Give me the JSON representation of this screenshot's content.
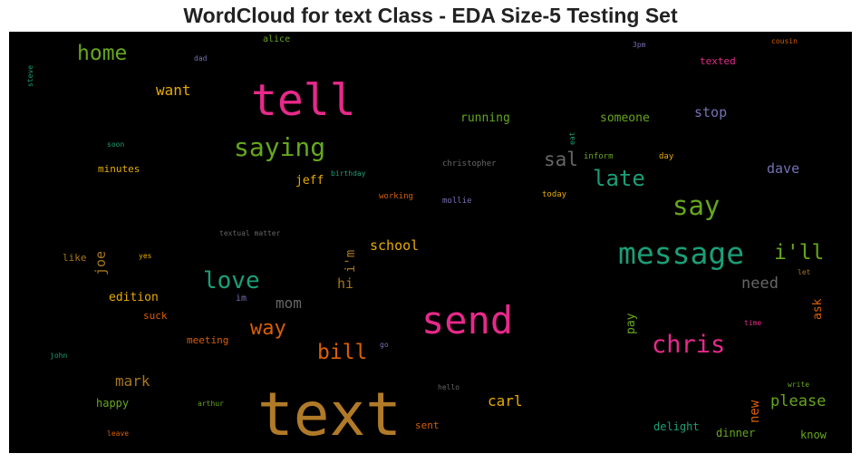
{
  "chart_data": {
    "type": "wordcloud",
    "title": "WordCloud for text Class - EDA Size-5 Testing Set",
    "background": "#000000",
    "words": [
      {
        "text": "text",
        "color": "#b07a28"
      },
      {
        "text": "tell",
        "color": "#e7298a"
      },
      {
        "text": "send",
        "color": "#e7298a"
      },
      {
        "text": "message",
        "color": "#1b9e77"
      },
      {
        "text": "saying",
        "color": "#66a61e"
      },
      {
        "text": "chris",
        "color": "#e7298a"
      },
      {
        "text": "love",
        "color": "#1b9e77"
      },
      {
        "text": "say",
        "color": "#66a61e"
      },
      {
        "text": "late",
        "color": "#1b9e77"
      },
      {
        "text": "i'll",
        "color": "#66a61e"
      },
      {
        "text": "home",
        "color": "#66a61e"
      },
      {
        "text": "bill",
        "color": "#d95f02"
      },
      {
        "text": "way",
        "color": "#d95f02"
      },
      {
        "text": "sal",
        "color": "#666666"
      },
      {
        "text": "need",
        "color": "#666666"
      },
      {
        "text": "mom",
        "color": "#666666"
      },
      {
        "text": "please",
        "color": "#66a61e"
      },
      {
        "text": "want",
        "color": "#e6ab02"
      },
      {
        "text": "dave",
        "color": "#7570b3"
      },
      {
        "text": "stop",
        "color": "#7570b3"
      },
      {
        "text": "mark",
        "color": "#a6761d"
      },
      {
        "text": "carl",
        "color": "#e6ab02"
      },
      {
        "text": "school",
        "color": "#e6ab02"
      },
      {
        "text": "joe",
        "color": "#a6761d",
        "vertical": true
      },
      {
        "text": "i'm",
        "color": "#a6761d",
        "vertical": true
      },
      {
        "text": "hi",
        "color": "#a6761d"
      },
      {
        "text": "running",
        "color": "#66a61e"
      },
      {
        "text": "someone",
        "color": "#66a61e"
      },
      {
        "text": "jeff",
        "color": "#e6ab02"
      },
      {
        "text": "edition",
        "color": "#e6ab02"
      },
      {
        "text": "new",
        "color": "#d95f02",
        "vertical": true
      },
      {
        "text": "ask",
        "color": "#d95f02",
        "vertical": true
      },
      {
        "text": "pay",
        "color": "#66a61e",
        "vertical": true
      },
      {
        "text": "happy",
        "color": "#66a61e"
      },
      {
        "text": "delight",
        "color": "#1b9e77"
      },
      {
        "text": "dinner",
        "color": "#66a61e"
      },
      {
        "text": "know",
        "color": "#66a61e"
      },
      {
        "text": "minutes",
        "color": "#e6ab02"
      },
      {
        "text": "meeting",
        "color": "#d95f02"
      },
      {
        "text": "suck",
        "color": "#d95f02"
      },
      {
        "text": "sent",
        "color": "#d95f02"
      },
      {
        "text": "like",
        "color": "#a6761d"
      },
      {
        "text": "texted",
        "color": "#e7298a"
      },
      {
        "text": "im",
        "color": "#7570b3"
      },
      {
        "text": "alice",
        "color": "#66a61e"
      },
      {
        "text": "christopher",
        "color": "#666666"
      },
      {
        "text": "textual matter",
        "color": "#666666"
      },
      {
        "text": "working",
        "color": "#d95f02"
      },
      {
        "text": "mollie",
        "color": "#7570b3"
      },
      {
        "text": "birthday",
        "color": "#1b9e77"
      },
      {
        "text": "today",
        "color": "#e6ab02"
      },
      {
        "text": "inform",
        "color": "#66a61e"
      },
      {
        "text": "day",
        "color": "#e6ab02"
      },
      {
        "text": "eat",
        "color": "#1b9e77",
        "vertical": true
      },
      {
        "text": "soon",
        "color": "#1b9e77"
      },
      {
        "text": "dad",
        "color": "#7570b3"
      },
      {
        "text": "steve",
        "color": "#1b9e77",
        "vertical": true
      },
      {
        "text": "3pm",
        "color": "#7570b3"
      },
      {
        "text": "cousin",
        "color": "#d95f02"
      },
      {
        "text": "let",
        "color": "#a6761d"
      },
      {
        "text": "time",
        "color": "#e7298a"
      },
      {
        "text": "write",
        "color": "#66a61e"
      },
      {
        "text": "hello",
        "color": "#666666"
      },
      {
        "text": "go",
        "color": "#7570b3"
      },
      {
        "text": "john",
        "color": "#1b9e77"
      },
      {
        "text": "arthur",
        "color": "#66a61e"
      },
      {
        "text": "leave",
        "color": "#d95f02"
      },
      {
        "text": "yes",
        "color": "#e6ab02"
      }
    ]
  }
}
